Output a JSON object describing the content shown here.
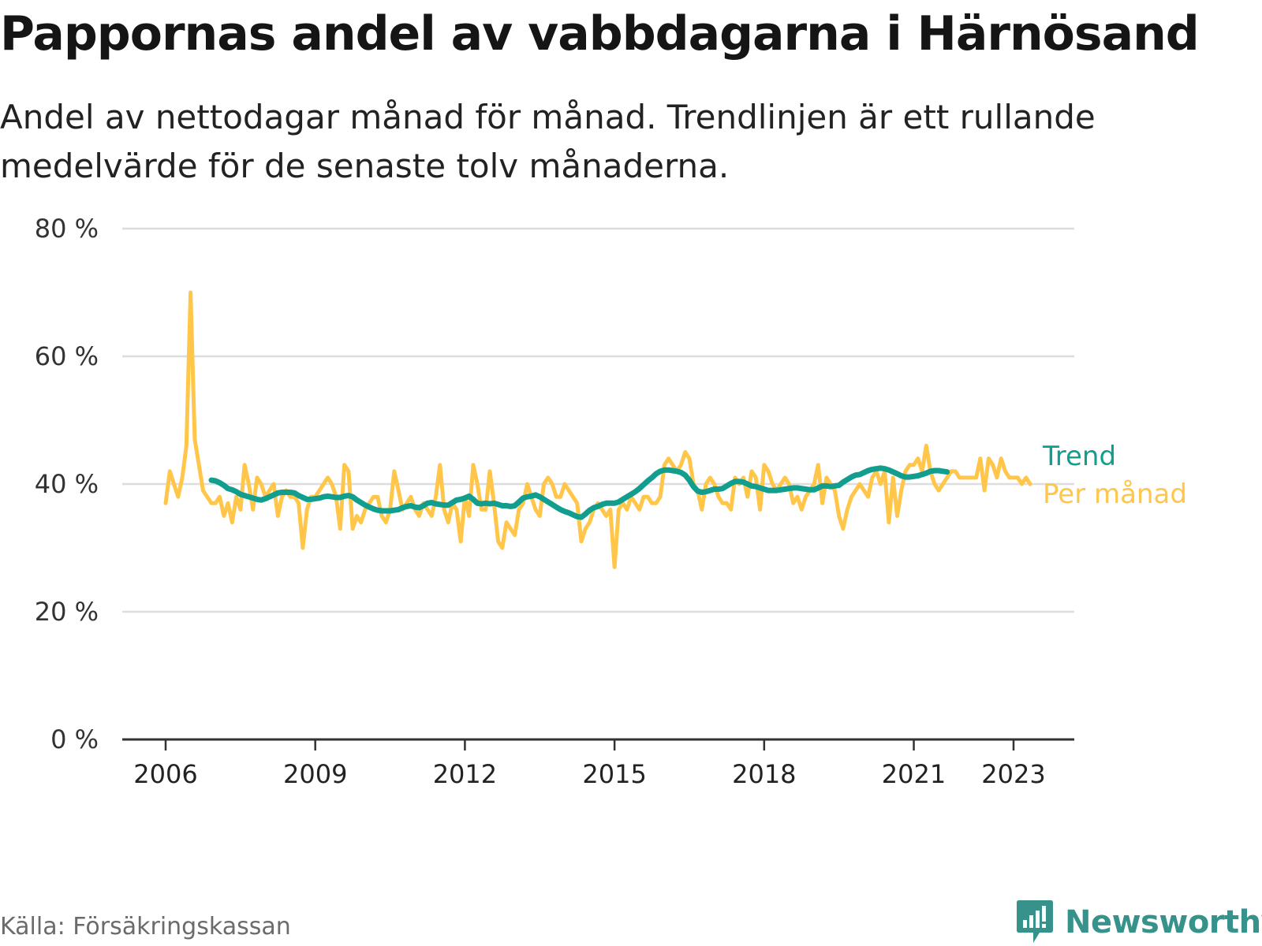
{
  "title": "Pappornas andel av vabbdagarna i Härnösand",
  "subtitle": "Andel av nettodagar månad för månad. Trendlinjen är ett rullande medelvärde för de senaste tolv månaderna.",
  "source": "Källa: Försäkringskassan",
  "brand": "Newsworthy",
  "colors": {
    "trend": "#119e8e",
    "monthly": "#ffc64a",
    "grid": "#dddddd",
    "axis": "#333333",
    "brand": "#37928b"
  },
  "chart_data": {
    "type": "line",
    "ylim": [
      0,
      80
    ],
    "y_ticks": [
      0,
      20,
      40,
      60,
      80
    ],
    "y_tick_labels": [
      "0 %",
      "20 %",
      "40 %",
      "60 %",
      "80 %"
    ],
    "x_ticks": [
      2006,
      2009,
      2012,
      2015,
      2018,
      2021,
      2023
    ],
    "x_tick_labels": [
      "2006",
      "2009",
      "2012",
      "2015",
      "2018",
      "2021",
      "2023"
    ],
    "grid": true,
    "series": [
      {
        "name": "Per månad",
        "x_start": "2006-01",
        "x_end": "2023-05",
        "values": [
          37,
          42,
          40,
          38,
          41,
          46,
          70,
          47,
          43,
          39,
          38,
          37,
          37,
          38,
          35,
          37,
          34,
          38,
          36,
          43,
          40,
          36,
          41,
          40,
          38,
          39,
          40,
          35,
          38,
          39,
          38,
          38,
          37,
          30,
          36,
          38,
          38,
          39,
          40,
          41,
          40,
          38,
          33,
          43,
          42,
          33,
          35,
          34,
          36,
          37,
          38,
          38,
          35,
          34,
          36,
          42,
          39,
          36,
          37,
          38,
          36,
          35,
          37,
          36,
          35,
          38,
          43,
          36,
          34,
          37,
          36,
          31,
          38,
          35,
          43,
          40,
          36,
          36,
          42,
          37,
          31,
          30,
          34,
          33,
          32,
          36,
          37,
          40,
          38,
          36,
          35,
          40,
          41,
          40,
          38,
          38,
          40,
          39,
          38,
          37,
          31,
          33,
          34,
          36,
          37,
          36,
          35,
          36,
          27,
          36,
          37,
          36,
          38,
          37,
          36,
          38,
          38,
          37,
          37,
          38,
          43,
          44,
          43,
          42,
          43,
          45,
          44,
          40,
          39,
          36,
          40,
          41,
          40,
          38,
          37,
          37,
          36,
          41,
          40,
          41,
          38,
          42,
          41,
          36,
          43,
          42,
          40,
          39,
          40,
          41,
          40,
          37,
          38,
          36,
          38,
          39,
          40,
          43,
          37,
          41,
          40,
          39,
          35,
          33,
          36,
          38,
          39,
          40,
          39,
          38,
          41,
          42,
          40,
          42,
          34,
          41,
          35,
          39,
          42,
          43,
          43,
          44,
          42,
          46,
          42,
          40,
          39,
          40,
          41,
          42,
          42,
          41,
          41,
          41,
          41,
          41,
          44,
          39,
          44,
          43,
          41,
          44,
          42,
          41,
          41,
          41,
          40,
          41,
          40
        ]
      },
      {
        "name": "Trend",
        "x_start": "2006-12",
        "x_end": "2023-05",
        "values": [
          40.6,
          40.5,
          40.2,
          39.8,
          39.3,
          39.1,
          38.8,
          38.4,
          38.2,
          38.0,
          37.8,
          37.6,
          37.5,
          37.7,
          38.0,
          38.3,
          38.6,
          38.7,
          38.7,
          38.7,
          38.6,
          38.2,
          37.9,
          37.6,
          37.6,
          37.7,
          37.8,
          38.0,
          38.1,
          38.0,
          37.9,
          37.9,
          38.1,
          38.2,
          38.0,
          37.5,
          37.1,
          36.7,
          36.4,
          36.1,
          35.9,
          35.8,
          35.8,
          35.8,
          35.9,
          36.0,
          36.3,
          36.5,
          36.6,
          36.4,
          36.3,
          36.6,
          37.0,
          37.1,
          36.9,
          36.8,
          36.7,
          36.7,
          37.1,
          37.5,
          37.6,
          37.8,
          38.1,
          37.6,
          37.0,
          36.9,
          37.0,
          36.9,
          37.0,
          36.8,
          36.6,
          36.6,
          36.5,
          36.6,
          37.2,
          37.8,
          38.0,
          38.1,
          38.3,
          38.0,
          37.6,
          37.2,
          36.8,
          36.4,
          36.0,
          35.7,
          35.5,
          35.2,
          34.9,
          34.8,
          35.3,
          35.9,
          36.3,
          36.5,
          36.8,
          37.0,
          37.0,
          37.0,
          37.2,
          37.6,
          38.0,
          38.4,
          38.8,
          39.3,
          39.9,
          40.5,
          41.0,
          41.6,
          42.0,
          42.2,
          42.2,
          42.1,
          42.0,
          41.8,
          41.4,
          40.6,
          39.6,
          38.9,
          38.7,
          38.8,
          39.0,
          39.2,
          39.2,
          39.3,
          39.7,
          40.1,
          40.4,
          40.4,
          40.3,
          40.0,
          39.7,
          39.6,
          39.4,
          39.2,
          39.0,
          39.0,
          39.0,
          39.1,
          39.2,
          39.3,
          39.4,
          39.4,
          39.3,
          39.2,
          39.1,
          39.1,
          39.4,
          39.7,
          39.7,
          39.6,
          39.7,
          39.8,
          40.3,
          40.7,
          41.1,
          41.4,
          41.5,
          41.8,
          42.1,
          42.3,
          42.4,
          42.5,
          42.4,
          42.2,
          41.9,
          41.6,
          41.3,
          41.1,
          41.1,
          41.2,
          41.3,
          41.5,
          41.7,
          42.0,
          42.1,
          42.1,
          42.0,
          41.9
        ]
      }
    ]
  }
}
